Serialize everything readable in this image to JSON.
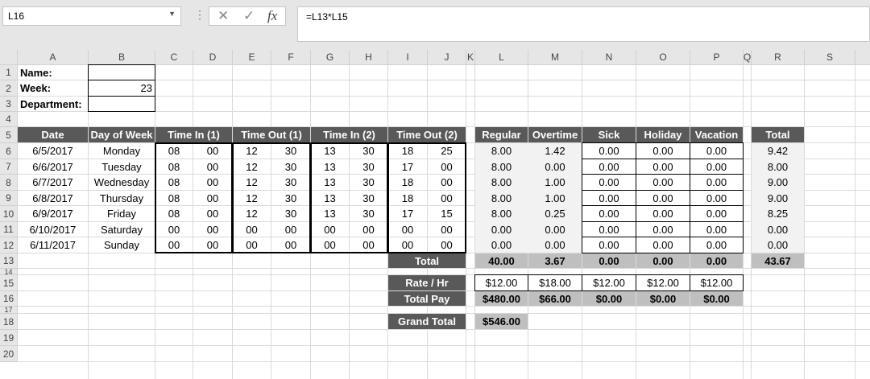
{
  "toolbar": {
    "name_box": "L16",
    "formula": "=L13*L15",
    "cancel_icon": "✕",
    "enter_icon": "✓",
    "fx_label": "fx"
  },
  "columns": [
    "A",
    "B",
    "C",
    "D",
    "E",
    "F",
    "G",
    "H",
    "I",
    "J",
    "K",
    "L",
    "M",
    "N",
    "O",
    "P",
    "Q",
    "R",
    "S",
    ""
  ],
  "rows": [
    "1",
    "2",
    "3",
    "4",
    "5",
    "6",
    "7",
    "8",
    "9",
    "10",
    "11",
    "12",
    "13",
    "14",
    "15",
    "16",
    "17",
    "18",
    "19",
    "20"
  ],
  "selected_cell": "L16",
  "colors": {
    "header_fill": "#595959",
    "total_fill": "#bfbfbf",
    "shaded_fill": "#f2f2f2"
  },
  "cells": [
    {
      "ref": "A1",
      "v": "Name:"
    },
    {
      "ref": "A2",
      "v": "Week:"
    },
    {
      "ref": "B2",
      "v": "23"
    },
    {
      "ref": "A3",
      "v": "Department:"
    },
    {
      "ref": "A5",
      "v": "Date"
    },
    {
      "ref": "B5",
      "v": "Day of Week"
    },
    {
      "ref": "C5:D5",
      "v": "Time In (1)"
    },
    {
      "ref": "E5:F5",
      "v": "Time Out (1)"
    },
    {
      "ref": "G5:H5",
      "v": "Time In (2)"
    },
    {
      "ref": "I5:J5",
      "v": "Time Out (2)"
    },
    {
      "ref": "L5",
      "v": "Regular"
    },
    {
      "ref": "M5",
      "v": "Overtime"
    },
    {
      "ref": "N5",
      "v": "Sick"
    },
    {
      "ref": "O5",
      "v": "Holiday"
    },
    {
      "ref": "P5",
      "v": "Vacation"
    },
    {
      "ref": "R5",
      "v": "Total"
    },
    {
      "ref": "A6",
      "v": "6/5/2017"
    },
    {
      "ref": "B6",
      "v": "Monday"
    },
    {
      "ref": "C6",
      "v": "08"
    },
    {
      "ref": "D6",
      "v": "00"
    },
    {
      "ref": "E6",
      "v": "12"
    },
    {
      "ref": "F6",
      "v": "30"
    },
    {
      "ref": "G6",
      "v": "13"
    },
    {
      "ref": "H6",
      "v": "30"
    },
    {
      "ref": "I6",
      "v": "18"
    },
    {
      "ref": "J6",
      "v": "25"
    },
    {
      "ref": "L6",
      "v": "8.00"
    },
    {
      "ref": "M6",
      "v": "1.42"
    },
    {
      "ref": "N6",
      "v": "0.00"
    },
    {
      "ref": "O6",
      "v": "0.00"
    },
    {
      "ref": "P6",
      "v": "0.00"
    },
    {
      "ref": "R6",
      "v": "9.42"
    },
    {
      "ref": "A7",
      "v": "6/6/2017"
    },
    {
      "ref": "B7",
      "v": "Tuesday"
    },
    {
      "ref": "C7",
      "v": "08"
    },
    {
      "ref": "D7",
      "v": "00"
    },
    {
      "ref": "E7",
      "v": "12"
    },
    {
      "ref": "F7",
      "v": "30"
    },
    {
      "ref": "G7",
      "v": "13"
    },
    {
      "ref": "H7",
      "v": "30"
    },
    {
      "ref": "I7",
      "v": "17"
    },
    {
      "ref": "J7",
      "v": "00"
    },
    {
      "ref": "L7",
      "v": "8.00"
    },
    {
      "ref": "M7",
      "v": "0.00"
    },
    {
      "ref": "N7",
      "v": "0.00"
    },
    {
      "ref": "O7",
      "v": "0.00"
    },
    {
      "ref": "P7",
      "v": "0.00"
    },
    {
      "ref": "R7",
      "v": "8.00"
    },
    {
      "ref": "A8",
      "v": "6/7/2017"
    },
    {
      "ref": "B8",
      "v": "Wednesday"
    },
    {
      "ref": "C8",
      "v": "08"
    },
    {
      "ref": "D8",
      "v": "00"
    },
    {
      "ref": "E8",
      "v": "12"
    },
    {
      "ref": "F8",
      "v": "30"
    },
    {
      "ref": "G8",
      "v": "13"
    },
    {
      "ref": "H8",
      "v": "30"
    },
    {
      "ref": "I8",
      "v": "18"
    },
    {
      "ref": "J8",
      "v": "00"
    },
    {
      "ref": "L8",
      "v": "8.00"
    },
    {
      "ref": "M8",
      "v": "1.00"
    },
    {
      "ref": "N8",
      "v": "0.00"
    },
    {
      "ref": "O8",
      "v": "0.00"
    },
    {
      "ref": "P8",
      "v": "0.00"
    },
    {
      "ref": "R8",
      "v": "9.00"
    },
    {
      "ref": "A9",
      "v": "6/8/2017"
    },
    {
      "ref": "B9",
      "v": "Thursday"
    },
    {
      "ref": "C9",
      "v": "08"
    },
    {
      "ref": "D9",
      "v": "00"
    },
    {
      "ref": "E9",
      "v": "12"
    },
    {
      "ref": "F9",
      "v": "30"
    },
    {
      "ref": "G9",
      "v": "13"
    },
    {
      "ref": "H9",
      "v": "30"
    },
    {
      "ref": "I9",
      "v": "18"
    },
    {
      "ref": "J9",
      "v": "00"
    },
    {
      "ref": "L9",
      "v": "8.00"
    },
    {
      "ref": "M9",
      "v": "1.00"
    },
    {
      "ref": "N9",
      "v": "0.00"
    },
    {
      "ref": "O9",
      "v": "0.00"
    },
    {
      "ref": "P9",
      "v": "0.00"
    },
    {
      "ref": "R9",
      "v": "9.00"
    },
    {
      "ref": "A10",
      "v": "6/9/2017"
    },
    {
      "ref": "B10",
      "v": "Friday"
    },
    {
      "ref": "C10",
      "v": "08"
    },
    {
      "ref": "D10",
      "v": "00"
    },
    {
      "ref": "E10",
      "v": "12"
    },
    {
      "ref": "F10",
      "v": "30"
    },
    {
      "ref": "G10",
      "v": "13"
    },
    {
      "ref": "H10",
      "v": "30"
    },
    {
      "ref": "I10",
      "v": "17"
    },
    {
      "ref": "J10",
      "v": "15"
    },
    {
      "ref": "L10",
      "v": "8.00"
    },
    {
      "ref": "M10",
      "v": "0.25"
    },
    {
      "ref": "N10",
      "v": "0.00"
    },
    {
      "ref": "O10",
      "v": "0.00"
    },
    {
      "ref": "P10",
      "v": "0.00"
    },
    {
      "ref": "R10",
      "v": "8.25"
    },
    {
      "ref": "A11",
      "v": "6/10/2017"
    },
    {
      "ref": "B11",
      "v": "Saturday"
    },
    {
      "ref": "C11",
      "v": "00"
    },
    {
      "ref": "D11",
      "v": "00"
    },
    {
      "ref": "E11",
      "v": "00"
    },
    {
      "ref": "F11",
      "v": "00"
    },
    {
      "ref": "G11",
      "v": "00"
    },
    {
      "ref": "H11",
      "v": "00"
    },
    {
      "ref": "I11",
      "v": "00"
    },
    {
      "ref": "J11",
      "v": "00"
    },
    {
      "ref": "L11",
      "v": "0.00"
    },
    {
      "ref": "M11",
      "v": "0.00"
    },
    {
      "ref": "N11",
      "v": "0.00"
    },
    {
      "ref": "O11",
      "v": "0.00"
    },
    {
      "ref": "P11",
      "v": "0.00"
    },
    {
      "ref": "R11",
      "v": "0.00"
    },
    {
      "ref": "A12",
      "v": "6/11/2017"
    },
    {
      "ref": "B12",
      "v": "Sunday"
    },
    {
      "ref": "C12",
      "v": "00"
    },
    {
      "ref": "D12",
      "v": "00"
    },
    {
      "ref": "E12",
      "v": "00"
    },
    {
      "ref": "F12",
      "v": "00"
    },
    {
      "ref": "G12",
      "v": "00"
    },
    {
      "ref": "H12",
      "v": "00"
    },
    {
      "ref": "I12",
      "v": "00"
    },
    {
      "ref": "J12",
      "v": "00"
    },
    {
      "ref": "L12",
      "v": "0.00"
    },
    {
      "ref": "M12",
      "v": "0.00"
    },
    {
      "ref": "N12",
      "v": "0.00"
    },
    {
      "ref": "O12",
      "v": "0.00"
    },
    {
      "ref": "P12",
      "v": "0.00"
    },
    {
      "ref": "R12",
      "v": "0.00"
    },
    {
      "ref": "I13:J13",
      "v": "Total"
    },
    {
      "ref": "L13",
      "v": "40.00"
    },
    {
      "ref": "M13",
      "v": "3.67"
    },
    {
      "ref": "N13",
      "v": "0.00"
    },
    {
      "ref": "O13",
      "v": "0.00"
    },
    {
      "ref": "P13",
      "v": "0.00"
    },
    {
      "ref": "R13",
      "v": "43.67"
    },
    {
      "ref": "I15:J15",
      "v": "Rate / Hr"
    },
    {
      "ref": "L15",
      "v": "$12.00"
    },
    {
      "ref": "M15",
      "v": "$18.00"
    },
    {
      "ref": "N15",
      "v": "$12.00"
    },
    {
      "ref": "O15",
      "v": "$12.00"
    },
    {
      "ref": "P15",
      "v": "$12.00"
    },
    {
      "ref": "I16:J16",
      "v": "Total Pay"
    },
    {
      "ref": "L16",
      "v": "$480.00"
    },
    {
      "ref": "M16",
      "v": "$66.00"
    },
    {
      "ref": "N16",
      "v": "$0.00"
    },
    {
      "ref": "O16",
      "v": "$0.00"
    },
    {
      "ref": "P16",
      "v": "$0.00"
    },
    {
      "ref": "I18:J18",
      "v": "Grand Total"
    },
    {
      "ref": "L18",
      "v": "$546.00"
    }
  ]
}
